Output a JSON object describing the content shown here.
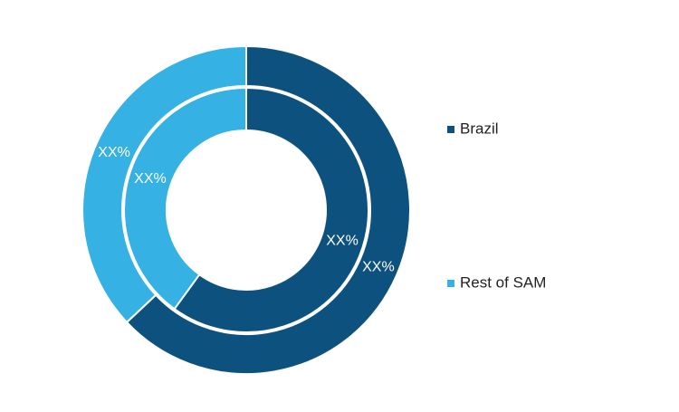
{
  "chart_data": {
    "type": "donut",
    "categories": [
      "Brazil",
      "Rest of SAM"
    ],
    "colors": [
      "#0d527f",
      "#35b1e4"
    ],
    "series": [
      {
        "values": [
          63,
          37
        ],
        "value_labels": [
          "XX%",
          "XX%"
        ]
      },
      {
        "values": [
          60,
          40
        ],
        "value_labels": [
          "XX%",
          "XX%"
        ]
      }
    ]
  }
}
